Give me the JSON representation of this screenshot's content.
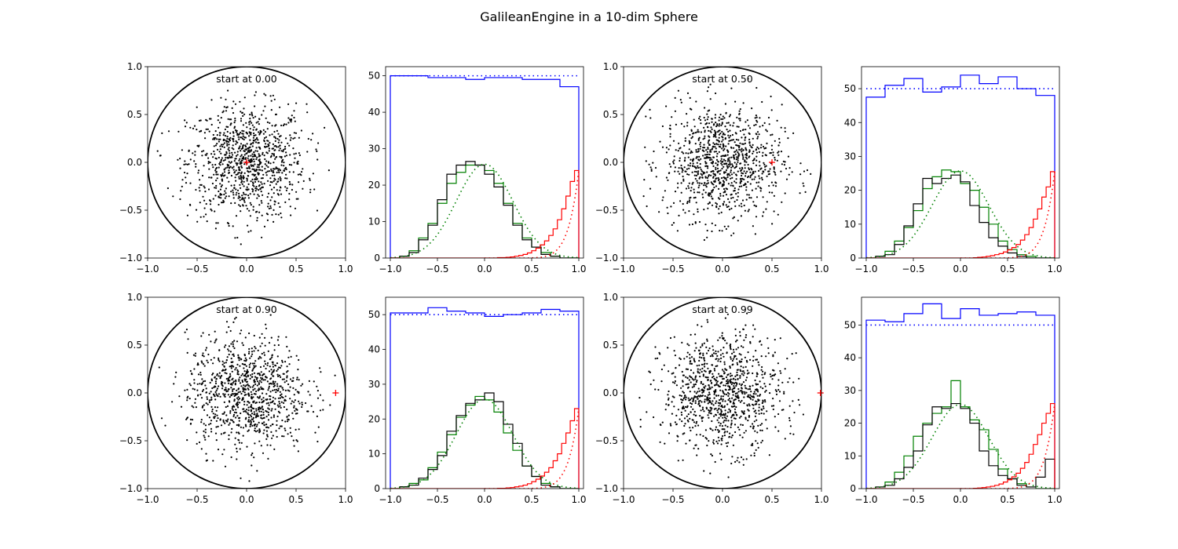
{
  "title": "GalileanEngine in a 10-dim Sphere",
  "colors": {
    "scatter": "#000000",
    "start": "#ff0000",
    "radius_hist": "#ff0000",
    "uniform_hist": "#0000ff",
    "coord1_hist": "#000000",
    "coord2_hist": "#008000",
    "expected": "dotted"
  },
  "chart_data": [
    {
      "type": "scatter",
      "annotation": "start at 0.00",
      "start_point": [
        0.0,
        0.0
      ],
      "n_points": 1000,
      "point_std": 0.3,
      "circle_radius": 1.0,
      "xlim": [
        -1.0,
        1.0
      ],
      "ylim": [
        -1.0,
        1.0
      ],
      "xticks": [
        "−1.0",
        "−0.5",
        "0.0",
        "0.5",
        "1.0"
      ],
      "yticks": [
        "−1.0",
        "−0.5",
        "0.0",
        "0.5",
        "1.0"
      ]
    },
    {
      "type": "step-histogram",
      "xlim": [
        -1.05,
        1.05
      ],
      "ylim": [
        0,
        52.5
      ],
      "xticks": [
        "−1.0",
        "−0.5",
        "0.0",
        "0.5",
        "1.0"
      ],
      "yticks": [
        "0",
        "10",
        "20",
        "30",
        "40",
        "50"
      ],
      "uniform_expected": 50,
      "uniform_values": [
        50,
        50,
        49.5,
        49.5,
        49,
        49.5,
        49.5,
        49,
        49,
        47
      ],
      "coord1_values": [
        0,
        0.5,
        1.5,
        5,
        9,
        16,
        23,
        25.5,
        26.5,
        25.5,
        23,
        19.5,
        14.5,
        9,
        5,
        3,
        1,
        0.5,
        0,
        0
      ],
      "coord2_values": [
        0,
        0.5,
        2,
        5.5,
        9.5,
        15,
        20.5,
        23.5,
        25.5,
        25.5,
        24,
        20.5,
        15,
        9.5,
        5.5,
        3,
        1.5,
        0.5,
        0,
        0
      ],
      "radius_values": [
        0,
        0,
        0,
        0,
        0,
        0,
        0,
        0,
        0,
        0,
        0,
        0,
        0,
        0,
        0,
        0,
        0,
        0,
        0,
        0,
        0,
        0,
        0,
        0,
        0,
        0.1,
        0.1,
        0.2,
        0.3,
        0.5,
        0.7,
        1,
        1.4,
        2,
        2.7,
        3.6,
        4.7,
        6.2,
        8,
        10.5,
        13.5,
        17,
        21,
        24
      ],
      "radius_expected": true
    },
    {
      "type": "scatter",
      "annotation": "start at 0.50",
      "start_point": [
        0.5,
        0.0
      ],
      "n_points": 1000,
      "point_std": 0.3,
      "circle_radius": 1.0,
      "xlim": [
        -1.0,
        1.0
      ],
      "ylim": [
        -1.0,
        1.0
      ],
      "xticks": [
        "−1.0",
        "−0.5",
        "0.0",
        "0.5",
        "1.0"
      ],
      "yticks": [
        "−1.0",
        "−0.5",
        "0.0",
        "0.5",
        "1.0"
      ]
    },
    {
      "type": "step-histogram",
      "xlim": [
        -1.05,
        1.05
      ],
      "ylim": [
        0,
        56.5
      ],
      "xticks": [
        "−1.0",
        "−0.5",
        "0.0",
        "0.5",
        "1.0"
      ],
      "yticks": [
        "0",
        "10",
        "20",
        "30",
        "40",
        "50"
      ],
      "uniform_expected": 50,
      "uniform_values": [
        47.5,
        51,
        53,
        49,
        50.5,
        54,
        51.5,
        53.5,
        50,
        48
      ],
      "coord1_values": [
        0,
        0.5,
        1,
        4,
        9.5,
        16,
        23.5,
        22,
        23.5,
        24.5,
        22.5,
        15.5,
        10.5,
        6,
        3.5,
        1.5,
        0.5,
        0,
        0,
        0
      ],
      "coord2_values": [
        0,
        0.5,
        2,
        5,
        9,
        14,
        20.5,
        24,
        26,
        25.5,
        22,
        20,
        15,
        10,
        5,
        2.5,
        1,
        0.5,
        0,
        0
      ],
      "radius_values": [
        0,
        0,
        0,
        0,
        0,
        0,
        0,
        0,
        0,
        0,
        0,
        0,
        0,
        0,
        0,
        0,
        0,
        0,
        0,
        0,
        0,
        0,
        0,
        0,
        0,
        0.1,
        0.2,
        0.3,
        0.5,
        0.7,
        1,
        1.3,
        1.8,
        2.4,
        3.1,
        4,
        5.3,
        6.9,
        9,
        11.5,
        14.5,
        18,
        21,
        25.5
      ],
      "radius_expected": true
    },
    {
      "type": "scatter",
      "annotation": "start at 0.90",
      "start_point": [
        0.9,
        0.0
      ],
      "n_points": 1000,
      "point_std": 0.3,
      "circle_radius": 1.0,
      "xlim": [
        -1.0,
        1.0
      ],
      "ylim": [
        -1.0,
        1.0
      ],
      "xticks": [
        "−1.0",
        "−0.5",
        "0.0",
        "0.5",
        "1.0"
      ],
      "yticks": [
        "−1.0",
        "−0.5",
        "0.0",
        "0.5",
        "1.0"
      ]
    },
    {
      "type": "step-histogram",
      "xlim": [
        -1.05,
        1.05
      ],
      "ylim": [
        0,
        55
      ],
      "xticks": [
        "−1.0",
        "−0.5",
        "0.0",
        "0.5",
        "1.0"
      ],
      "yticks": [
        "0",
        "10",
        "20",
        "30",
        "40",
        "50"
      ],
      "uniform_expected": 50,
      "uniform_values": [
        50.5,
        50.5,
        52,
        51,
        50.5,
        49.5,
        50,
        50.5,
        51.5,
        51
      ],
      "coord1_values": [
        0,
        0.5,
        1,
        3,
        5.5,
        9.5,
        16.5,
        21,
        24.5,
        25.5,
        27.5,
        25,
        18.5,
        13,
        6.5,
        3.5,
        1,
        0.5,
        0,
        0
      ],
      "coord2_values": [
        0,
        0.5,
        1.5,
        2.5,
        6,
        10.5,
        15.5,
        20.5,
        24,
        26.5,
        25.5,
        22,
        16,
        11,
        6.5,
        3.5,
        1.5,
        0.5,
        0,
        0
      ],
      "radius_values": [
        0,
        0,
        0,
        0,
        0,
        0,
        0,
        0,
        0,
        0,
        0,
        0,
        0,
        0,
        0,
        0,
        0,
        0,
        0,
        0,
        0,
        0,
        0,
        0,
        0,
        0.1,
        0.1,
        0.2,
        0.3,
        0.5,
        0.7,
        1,
        1.4,
        2,
        2.7,
        3.6,
        4.7,
        6,
        8,
        10,
        13,
        16,
        19.5,
        23
      ],
      "radius_expected": true
    },
    {
      "type": "scatter",
      "annotation": "start at 0.99",
      "start_point": [
        0.99,
        0.0
      ],
      "n_points": 1000,
      "point_std": 0.3,
      "circle_radius": 1.0,
      "xlim": [
        -1.0,
        1.0
      ],
      "ylim": [
        -1.0,
        1.0
      ],
      "xticks": [
        "−1.0",
        "−0.5",
        "0.0",
        "0.5",
        "1.0"
      ],
      "yticks": [
        "−1.0",
        "−0.5",
        "0.0",
        "0.5",
        "1.0"
      ]
    },
    {
      "type": "step-histogram",
      "xlim": [
        -1.05,
        1.05
      ],
      "ylim": [
        0,
        58.5
      ],
      "xticks": [
        "−1.0",
        "−0.5",
        "0.0",
        "0.5",
        "1.0"
      ],
      "yticks": [
        "0",
        "10",
        "20",
        "30",
        "40",
        "50"
      ],
      "uniform_expected": 50,
      "uniform_values": [
        51.5,
        51,
        53.5,
        56.5,
        52,
        55,
        53,
        53.5,
        54,
        53
      ],
      "coord1_values": [
        0,
        0.5,
        1,
        3,
        6.5,
        11.5,
        19.5,
        25,
        24.5,
        26,
        24.5,
        20,
        11.5,
        7,
        4,
        3,
        1,
        0.5,
        3.5,
        9
      ],
      "coord2_values": [
        0,
        0.5,
        2,
        5,
        10,
        16,
        20,
        23,
        25,
        33,
        25,
        21,
        18,
        12,
        6,
        3,
        1.5,
        0.5,
        0,
        0
      ],
      "radius_values": [
        0,
        0,
        0,
        0,
        0,
        0,
        0,
        0,
        0,
        0,
        0,
        0,
        0,
        0,
        0,
        0,
        0,
        0,
        0,
        0,
        0,
        0,
        0,
        0,
        0,
        0.1,
        0.2,
        0.3,
        0.5,
        0.7,
        1,
        1.4,
        2,
        2.7,
        3.6,
        4.7,
        6.2,
        8,
        10.5,
        13.5,
        16.5,
        20,
        23,
        26
      ],
      "radius_expected": true
    }
  ]
}
